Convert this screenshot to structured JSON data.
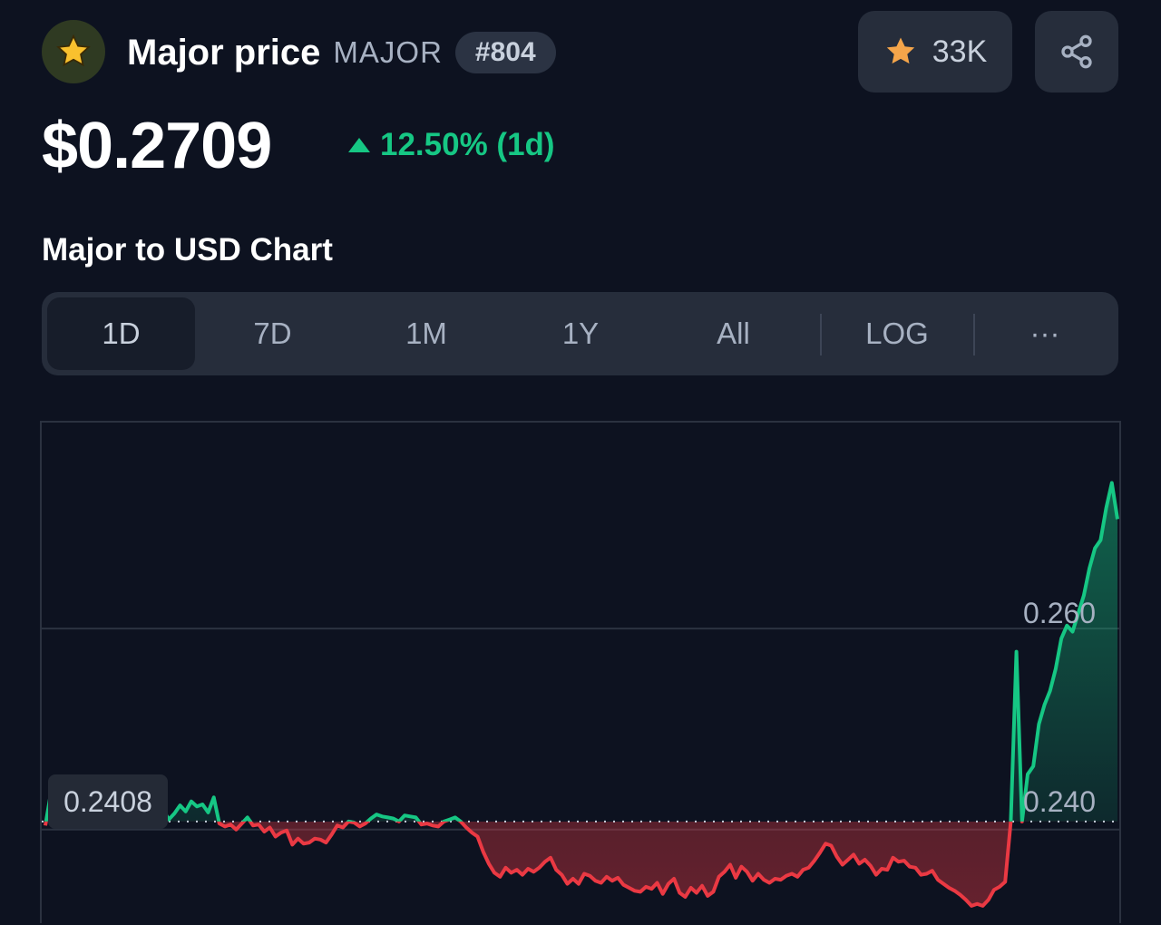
{
  "header": {
    "logo_icon": "star-icon",
    "name": "Major price",
    "symbol": "MAJOR",
    "rank": "#804",
    "watchlist_count": "33K",
    "watch_icon": "star-icon",
    "share_icon": "share-icon"
  },
  "price": {
    "value": "$0.2709",
    "change": "12.50% (1d)",
    "direction": "up",
    "up_color": "#16c784",
    "down_color": "#ea3943"
  },
  "chart_section": {
    "heading": "Major to USD Chart",
    "tabs": [
      "1D",
      "7D",
      "1M",
      "1Y",
      "All",
      "LOG",
      "···"
    ],
    "active_tab": "1D"
  },
  "chart_data": {
    "type": "area",
    "reference_value": 0.2408,
    "reference_label": "0.2408",
    "y_ticks": [
      0.26,
      0.24
    ],
    "y_tick_labels": [
      "0.260",
      "0.240"
    ],
    "ylim": [
      0.2305,
      0.2805
    ],
    "grid": true,
    "series": [
      {
        "values": [
          0.2404,
          0.2437,
          0.2432,
          0.244,
          0.2433,
          0.2438,
          0.2435,
          0.2433,
          0.2441,
          0.2436,
          0.2443,
          0.2447,
          0.244,
          0.2448,
          0.2437,
          0.2444,
          0.2433,
          0.244,
          0.2437,
          0.243,
          0.2408,
          0.2419,
          0.241,
          0.2416,
          0.2424,
          0.2418,
          0.2428,
          0.2423,
          0.2425,
          0.2417,
          0.2432,
          0.2406,
          0.2403,
          0.2405,
          0.24,
          0.2406,
          0.2412,
          0.2404,
          0.2405,
          0.2398,
          0.2402,
          0.2393,
          0.2397,
          0.2399,
          0.2385,
          0.2391,
          0.2386,
          0.2387,
          0.2391,
          0.239,
          0.2387,
          0.2395,
          0.2404,
          0.2402,
          0.2408,
          0.2407,
          0.2403,
          0.2406,
          0.2411,
          0.2415,
          0.2413,
          0.2412,
          0.2411,
          0.2408,
          0.2414,
          0.2413,
          0.2412,
          0.2405,
          0.2406,
          0.2404,
          0.2403,
          0.2408,
          0.241,
          0.2412,
          0.2408,
          0.2402,
          0.2397,
          0.2393,
          0.2378,
          0.2366,
          0.2357,
          0.2353,
          0.2362,
          0.2357,
          0.236,
          0.2355,
          0.2361,
          0.2358,
          0.2362,
          0.2368,
          0.2372,
          0.236,
          0.2355,
          0.2346,
          0.2351,
          0.2346,
          0.2356,
          0.2354,
          0.2349,
          0.2347,
          0.2353,
          0.2349,
          0.2352,
          0.2345,
          0.2342,
          0.2339,
          0.2338,
          0.2343,
          0.2341,
          0.2347,
          0.2336,
          0.2346,
          0.2351,
          0.2337,
          0.2333,
          0.2342,
          0.2337,
          0.2344,
          0.2334,
          0.2338,
          0.2353,
          0.2358,
          0.2365,
          0.2352,
          0.2363,
          0.2358,
          0.2349,
          0.2356,
          0.235,
          0.2347,
          0.2351,
          0.235,
          0.2354,
          0.2356,
          0.2353,
          0.236,
          0.2362,
          0.2369,
          0.2377,
          0.2386,
          0.2384,
          0.2373,
          0.2365,
          0.237,
          0.2375,
          0.2366,
          0.237,
          0.2364,
          0.2355,
          0.2361,
          0.236,
          0.2372,
          0.2368,
          0.2369,
          0.2363,
          0.2362,
          0.2355,
          0.2356,
          0.2359,
          0.235,
          0.2346,
          0.2342,
          0.2339,
          0.2335,
          0.233,
          0.2324,
          0.2326,
          0.2324,
          0.233,
          0.234,
          0.2343,
          0.2348,
          0.2408,
          0.2577,
          0.2408,
          0.2455,
          0.2463,
          0.2505,
          0.2524,
          0.2538,
          0.256,
          0.259,
          0.2603,
          0.2597,
          0.2615,
          0.2633,
          0.266,
          0.268,
          0.2688,
          0.272,
          0.2745,
          0.2709
        ]
      }
    ]
  }
}
